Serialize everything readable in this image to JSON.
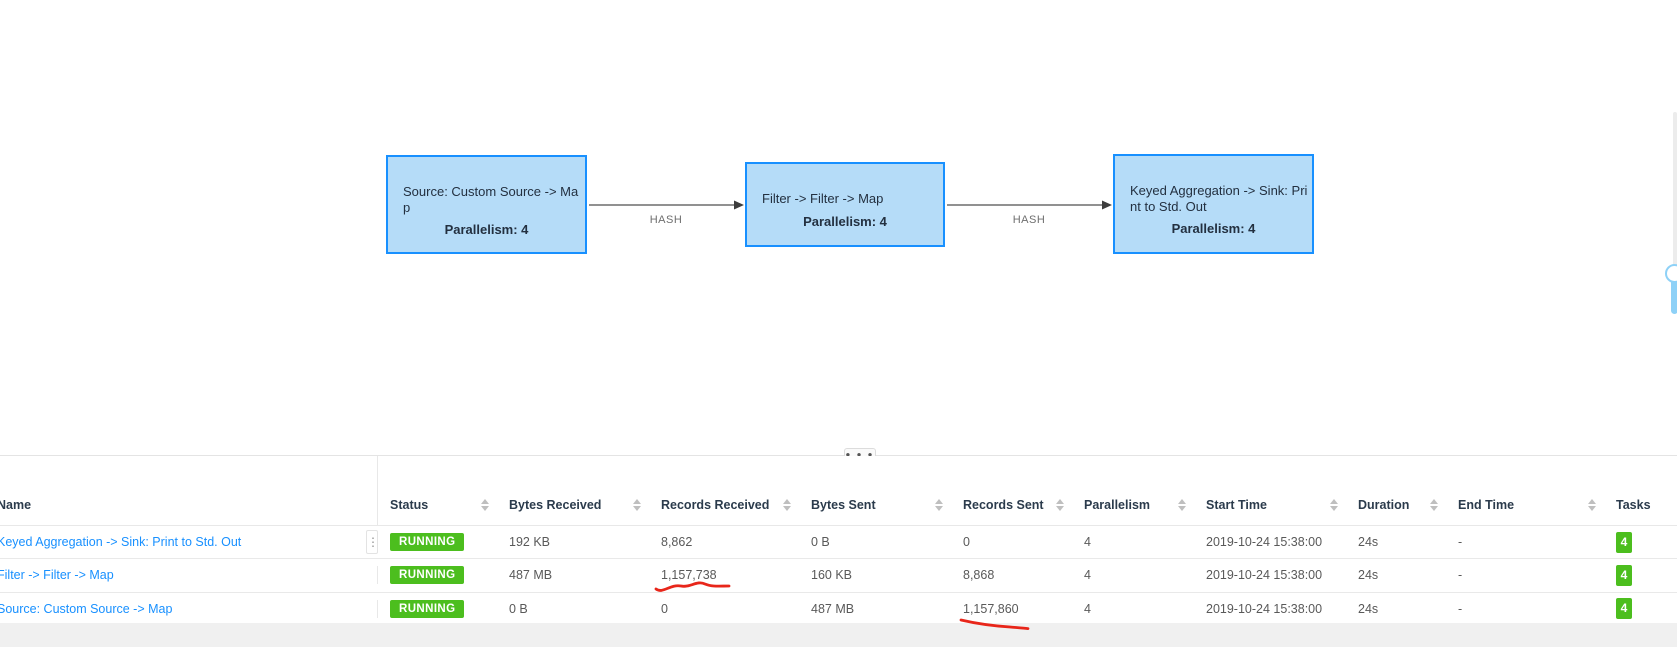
{
  "graph": {
    "nodes": [
      {
        "id": "source",
        "name": "Source: Custom Source -> Map",
        "parallelism": "Parallelism: 4"
      },
      {
        "id": "filter",
        "name": "Filter -> Filter -> Map",
        "parallelism": "Parallelism: 4"
      },
      {
        "id": "sink",
        "name": "Keyed Aggregation -> Sink: Print to Std. Out",
        "parallelism": "Parallelism: 4"
      }
    ],
    "edges": [
      {
        "from": "source",
        "to": "filter",
        "label": "HASH"
      },
      {
        "from": "filter",
        "to": "sink",
        "label": "HASH"
      }
    ]
  },
  "splitter": {
    "dots_icon": "● ● ●"
  },
  "icons": {
    "column_drag": "⋮"
  },
  "table": {
    "columns": [
      {
        "key": "name",
        "label": "Name",
        "sortable": false
      },
      {
        "key": "status",
        "label": "Status",
        "sortable": true
      },
      {
        "key": "bytes_received",
        "label": "Bytes Received",
        "sortable": true
      },
      {
        "key": "records_received",
        "label": "Records Received",
        "sortable": true
      },
      {
        "key": "bytes_sent",
        "label": "Bytes Sent",
        "sortable": true
      },
      {
        "key": "records_sent",
        "label": "Records Sent",
        "sortable": true
      },
      {
        "key": "parallelism",
        "label": "Parallelism",
        "sortable": true
      },
      {
        "key": "start_time",
        "label": "Start Time",
        "sortable": true
      },
      {
        "key": "duration",
        "label": "Duration",
        "sortable": true
      },
      {
        "key": "end_time",
        "label": "End Time",
        "sortable": true
      },
      {
        "key": "tasks",
        "label": "Tasks",
        "sortable": false
      }
    ],
    "rows": [
      {
        "name": "Keyed Aggregation -> Sink: Print to Std. Out",
        "status": "RUNNING",
        "bytes_received": "192 KB",
        "records_received": "8,862",
        "bytes_sent": "0 B",
        "records_sent": "0",
        "parallelism": "4",
        "start_time": "2019-10-24 15:38:00",
        "duration": "24s",
        "end_time": "-",
        "tasks": "4"
      },
      {
        "name": "Filter -> Filter -> Map",
        "status": "RUNNING",
        "bytes_received": "487 MB",
        "records_received": "1,157,738",
        "bytes_sent": "160 KB",
        "records_sent": "8,868",
        "parallelism": "4",
        "start_time": "2019-10-24 15:38:00",
        "duration": "24s",
        "end_time": "-",
        "tasks": "4"
      },
      {
        "name": "Source: Custom Source -> Map",
        "status": "RUNNING",
        "bytes_received": "0 B",
        "records_received": "0",
        "bytes_sent": "487 MB",
        "records_sent": "1,157,860",
        "parallelism": "4",
        "start_time": "2019-10-24 15:38:00",
        "duration": "24s",
        "end_time": "-",
        "tasks": "4"
      }
    ]
  },
  "annotations": [
    {
      "type": "wavy-underline",
      "color": "#e8261a",
      "marks_value": "1,157,738",
      "row": "Filter -> Filter -> Map",
      "column": "Records Received"
    },
    {
      "type": "underline",
      "color": "#e8261a",
      "marks_value": "1,157,860",
      "row": "Source: Custom Source -> Map",
      "column": "Records Sent"
    }
  ],
  "colors": {
    "node_fill": "#b5dcf8",
    "node_border": "#1890ff",
    "status_running": "#4cbe1e",
    "tasks_badge": "#4cbe1e",
    "link": "#1890ff",
    "annotation_red": "#e8261a"
  }
}
